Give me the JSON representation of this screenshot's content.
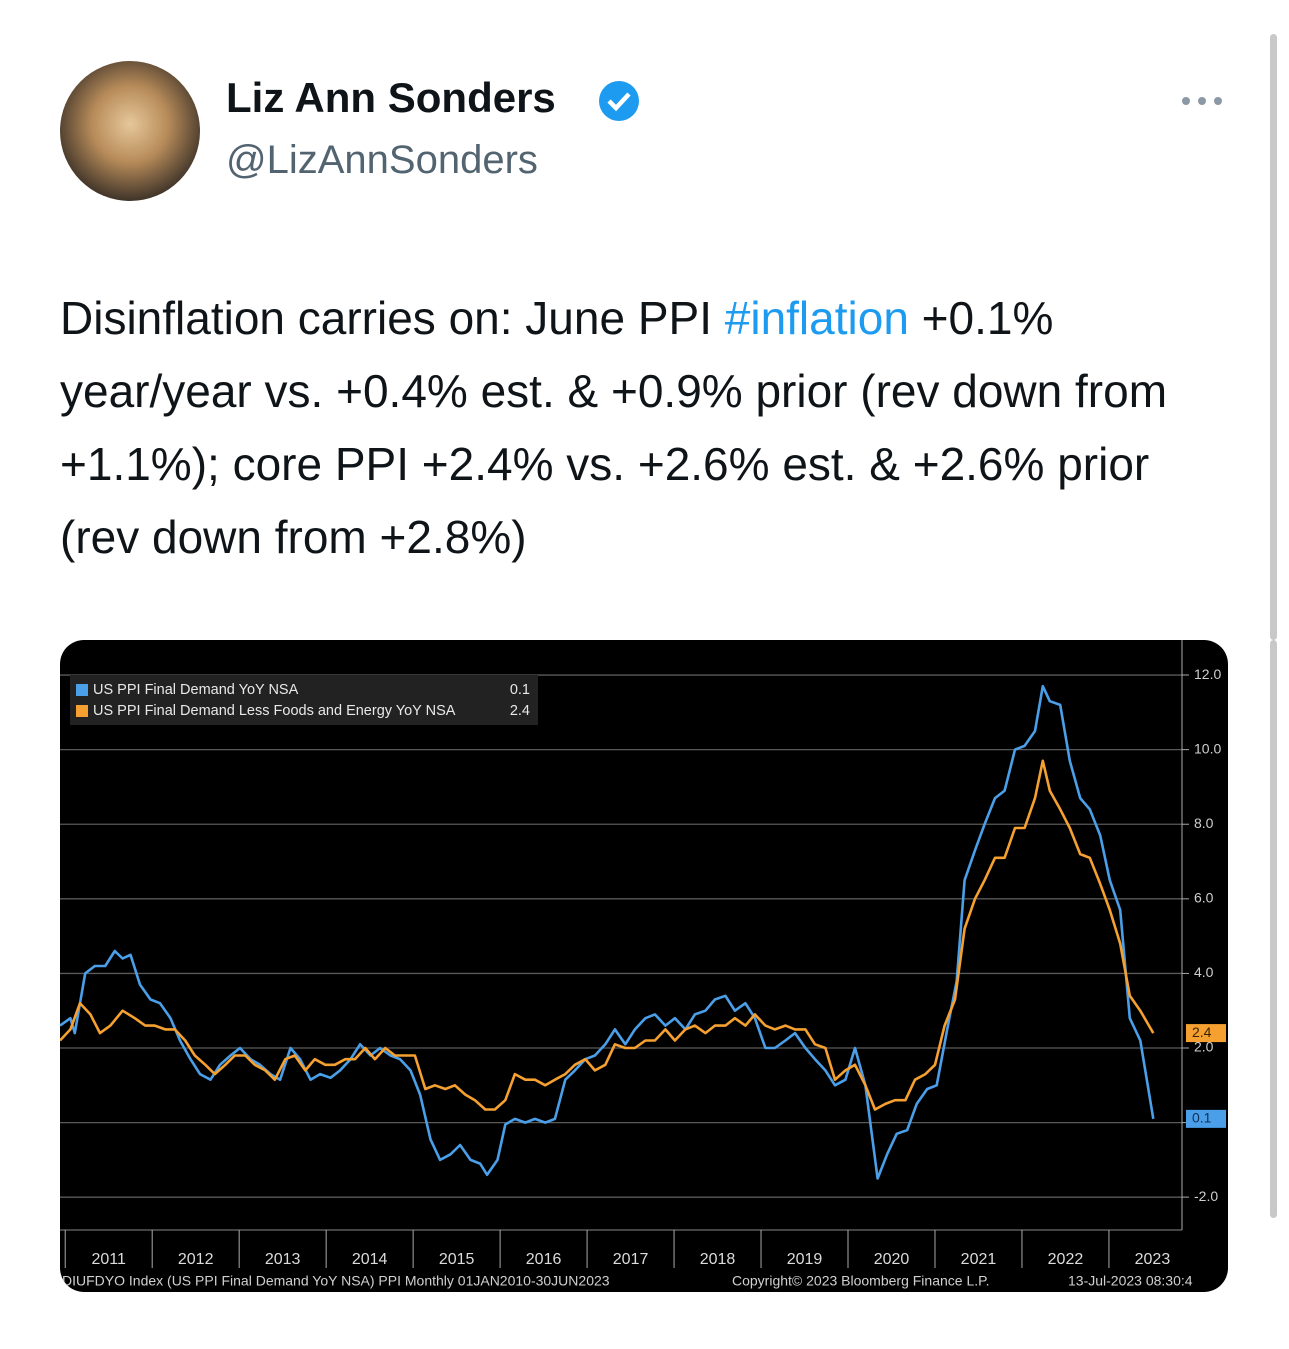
{
  "tweet": {
    "author": {
      "name": "Liz Ann Sonders",
      "handle": "@LizAnnSonders"
    },
    "text": [
      "Disinflation carries on: June PPI ",
      "#inflation",
      " +0.1% year/year vs. +0.4% est. & +0.9% prior (rev down from +1.1%); core PPI +2.4% vs. +2.6% est. & +2.6% prior (rev down from +2.8%)"
    ]
  },
  "chart_data": {
    "type": "line",
    "series": [
      {
        "name": "US PPI Final Demand YoY NSA",
        "last_label": "0.1",
        "color": "#4a9fe8",
        "x": [
          2010.94,
          2011.06,
          2011.11,
          2011.23,
          2011.34,
          2011.46,
          2011.57,
          2011.66,
          2011.75,
          2011.86,
          2011.98,
          2012.09,
          2012.21,
          2012.32,
          2012.44,
          2012.55,
          2012.67,
          2012.78,
          2012.9,
          2013.01,
          2013.13,
          2013.24,
          2013.36,
          2013.47,
          2013.59,
          2013.7,
          2013.82,
          2013.93,
          2014.05,
          2014.16,
          2014.28,
          2014.39,
          2014.51,
          2014.62,
          2014.74,
          2014.85,
          2014.97,
          2015.08,
          2015.2,
          2015.31,
          2015.43,
          2015.54,
          2015.66,
          2015.77,
          2015.85,
          2015.97,
          2016.06,
          2016.17,
          2016.29,
          2016.4,
          2016.52,
          2016.63,
          2016.75,
          2016.86,
          2016.98,
          2017.09,
          2017.21,
          2017.32,
          2017.44,
          2017.55,
          2017.67,
          2017.78,
          2017.9,
          2018.01,
          2018.13,
          2018.24,
          2018.36,
          2018.47,
          2018.59,
          2018.7,
          2018.82,
          2018.93,
          2019.05,
          2019.16,
          2019.28,
          2019.39,
          2019.51,
          2019.62,
          2019.74,
          2019.85,
          2019.97,
          2020.08,
          2020.2,
          2020.34,
          2020.45,
          2020.56,
          2020.68,
          2020.79,
          2020.91,
          2021.02,
          2021.14,
          2021.25,
          2021.34,
          2021.46,
          2021.57,
          2021.69,
          2021.8,
          2021.92,
          2022.03,
          2022.15,
          2022.24,
          2022.32,
          2022.44,
          2022.55,
          2022.67,
          2022.78,
          2022.9,
          2023.01,
          2023.13,
          2023.24,
          2023.36,
          2023.51
        ],
        "values": [
          2.6,
          2.8,
          2.4,
          4.0,
          4.2,
          4.2,
          4.6,
          4.4,
          4.5,
          3.7,
          3.3,
          3.2,
          2.8,
          2.2,
          1.7,
          1.3,
          1.15,
          1.55,
          1.8,
          2.0,
          1.7,
          1.55,
          1.3,
          1.15,
          2.0,
          1.7,
          1.15,
          1.3,
          1.2,
          1.4,
          1.7,
          2.1,
          1.8,
          2.0,
          1.8,
          1.7,
          1.4,
          0.75,
          -0.45,
          -1.0,
          -0.85,
          -0.6,
          -1.0,
          -1.1,
          -1.4,
          -1.0,
          -0.05,
          0.1,
          0.0,
          0.1,
          0.0,
          0.1,
          1.15,
          1.4,
          1.7,
          1.8,
          2.1,
          2.5,
          2.1,
          2.5,
          2.8,
          2.9,
          2.6,
          2.8,
          2.5,
          2.9,
          3.0,
          3.3,
          3.4,
          3.0,
          3.2,
          2.8,
          2.0,
          2.0,
          2.2,
          2.4,
          2.0,
          1.7,
          1.4,
          1.0,
          1.15,
          2.0,
          1.0,
          -1.5,
          -0.85,
          -0.3,
          -0.2,
          0.5,
          0.9,
          1.0,
          2.5,
          3.8,
          6.5,
          7.3,
          8.0,
          8.7,
          8.9,
          10.0,
          10.1,
          10.5,
          11.7,
          11.3,
          11.2,
          9.7,
          8.7,
          8.4,
          7.7,
          6.5,
          5.7,
          2.8,
          2.2,
          0.1
        ]
      },
      {
        "name": "US PPI Final Demand Less Foods and Energy YoY NSA",
        "last_label": "2.4",
        "color": "#f5a030",
        "x": [
          2010.94,
          2011.06,
          2011.17,
          2011.29,
          2011.4,
          2011.52,
          2011.66,
          2011.8,
          2011.92,
          2012.03,
          2012.15,
          2012.26,
          2012.38,
          2012.49,
          2012.61,
          2012.72,
          2012.84,
          2012.95,
          2013.07,
          2013.18,
          2013.3,
          2013.41,
          2013.53,
          2013.64,
          2013.76,
          2013.87,
          2013.99,
          2014.1,
          2014.22,
          2014.33,
          2014.45,
          2014.56,
          2014.68,
          2014.79,
          2014.91,
          2015.02,
          2015.14,
          2015.25,
          2015.37,
          2015.48,
          2015.6,
          2015.71,
          2015.83,
          2015.94,
          2016.06,
          2016.17,
          2016.29,
          2016.4,
          2016.52,
          2016.63,
          2016.75,
          2016.86,
          2016.98,
          2017.09,
          2017.21,
          2017.32,
          2017.44,
          2017.55,
          2017.67,
          2017.78,
          2017.9,
          2018.01,
          2018.13,
          2018.24,
          2018.36,
          2018.47,
          2018.59,
          2018.7,
          2018.82,
          2018.93,
          2019.05,
          2019.16,
          2019.28,
          2019.39,
          2019.51,
          2019.62,
          2019.74,
          2019.85,
          2019.97,
          2020.08,
          2020.2,
          2020.31,
          2020.43,
          2020.54,
          2020.66,
          2020.77,
          2020.89,
          2021.0,
          2021.11,
          2021.23,
          2021.34,
          2021.46,
          2021.57,
          2021.69,
          2021.8,
          2021.92,
          2022.03,
          2022.15,
          2022.24,
          2022.32,
          2022.44,
          2022.55,
          2022.67,
          2022.78,
          2022.9,
          2023.01,
          2023.13,
          2023.24,
          2023.36,
          2023.51
        ],
        "values": [
          2.2,
          2.5,
          3.2,
          2.9,
          2.4,
          2.6,
          3.0,
          2.8,
          2.6,
          2.6,
          2.5,
          2.5,
          2.2,
          1.8,
          1.55,
          1.3,
          1.55,
          1.8,
          1.8,
          1.55,
          1.4,
          1.15,
          1.7,
          1.8,
          1.4,
          1.7,
          1.55,
          1.55,
          1.7,
          1.7,
          2.0,
          1.7,
          2.0,
          1.8,
          1.8,
          1.8,
          0.9,
          1.0,
          0.9,
          1.0,
          0.75,
          0.6,
          0.35,
          0.35,
          0.6,
          1.3,
          1.15,
          1.15,
          1.0,
          1.15,
          1.3,
          1.55,
          1.7,
          1.4,
          1.55,
          2.1,
          2.0,
          2.0,
          2.2,
          2.2,
          2.5,
          2.2,
          2.5,
          2.6,
          2.4,
          2.6,
          2.6,
          2.8,
          2.6,
          2.9,
          2.6,
          2.5,
          2.6,
          2.5,
          2.5,
          2.1,
          2.0,
          1.15,
          1.4,
          1.55,
          1.0,
          0.35,
          0.5,
          0.6,
          0.6,
          1.15,
          1.3,
          1.55,
          2.6,
          3.3,
          5.2,
          6.0,
          6.5,
          7.1,
          7.1,
          7.9,
          7.9,
          8.7,
          9.7,
          8.9,
          8.4,
          7.9,
          7.2,
          7.1,
          6.4,
          5.7,
          4.8,
          3.4,
          3.0,
          2.4
        ]
      }
    ],
    "xlim": [
      2010.94,
      2023.84
    ],
    "xticks": [
      2011,
      2012,
      2013,
      2014,
      2015,
      2016,
      2017,
      2018,
      2019,
      2020,
      2021,
      2022,
      2023
    ],
    "ylim": [
      -2.88,
      12.94
    ],
    "yticks": [
      {
        "value": -2,
        "label": "-2.0"
      },
      {
        "value": 0,
        "label": "0.0"
      },
      {
        "value": 2,
        "label": "2.0"
      },
      {
        "value": 4,
        "label": "4.0"
      },
      {
        "value": 6,
        "label": "6.0"
      },
      {
        "value": 8,
        "label": "8.0"
      },
      {
        "value": 10,
        "label": "10.0"
      },
      {
        "value": 12,
        "label": "12.0"
      }
    ],
    "grid": true,
    "legend": "top-left",
    "footnotes": [
      "DIUFDYO Index (US PPI Final Demand YoY NSA) PPI  Monthly 01JAN2010-30JUN2023",
      "Copyright© 2023 Bloomberg Finance L.P.",
      "13-Jul-2023 08:30:4"
    ]
  }
}
